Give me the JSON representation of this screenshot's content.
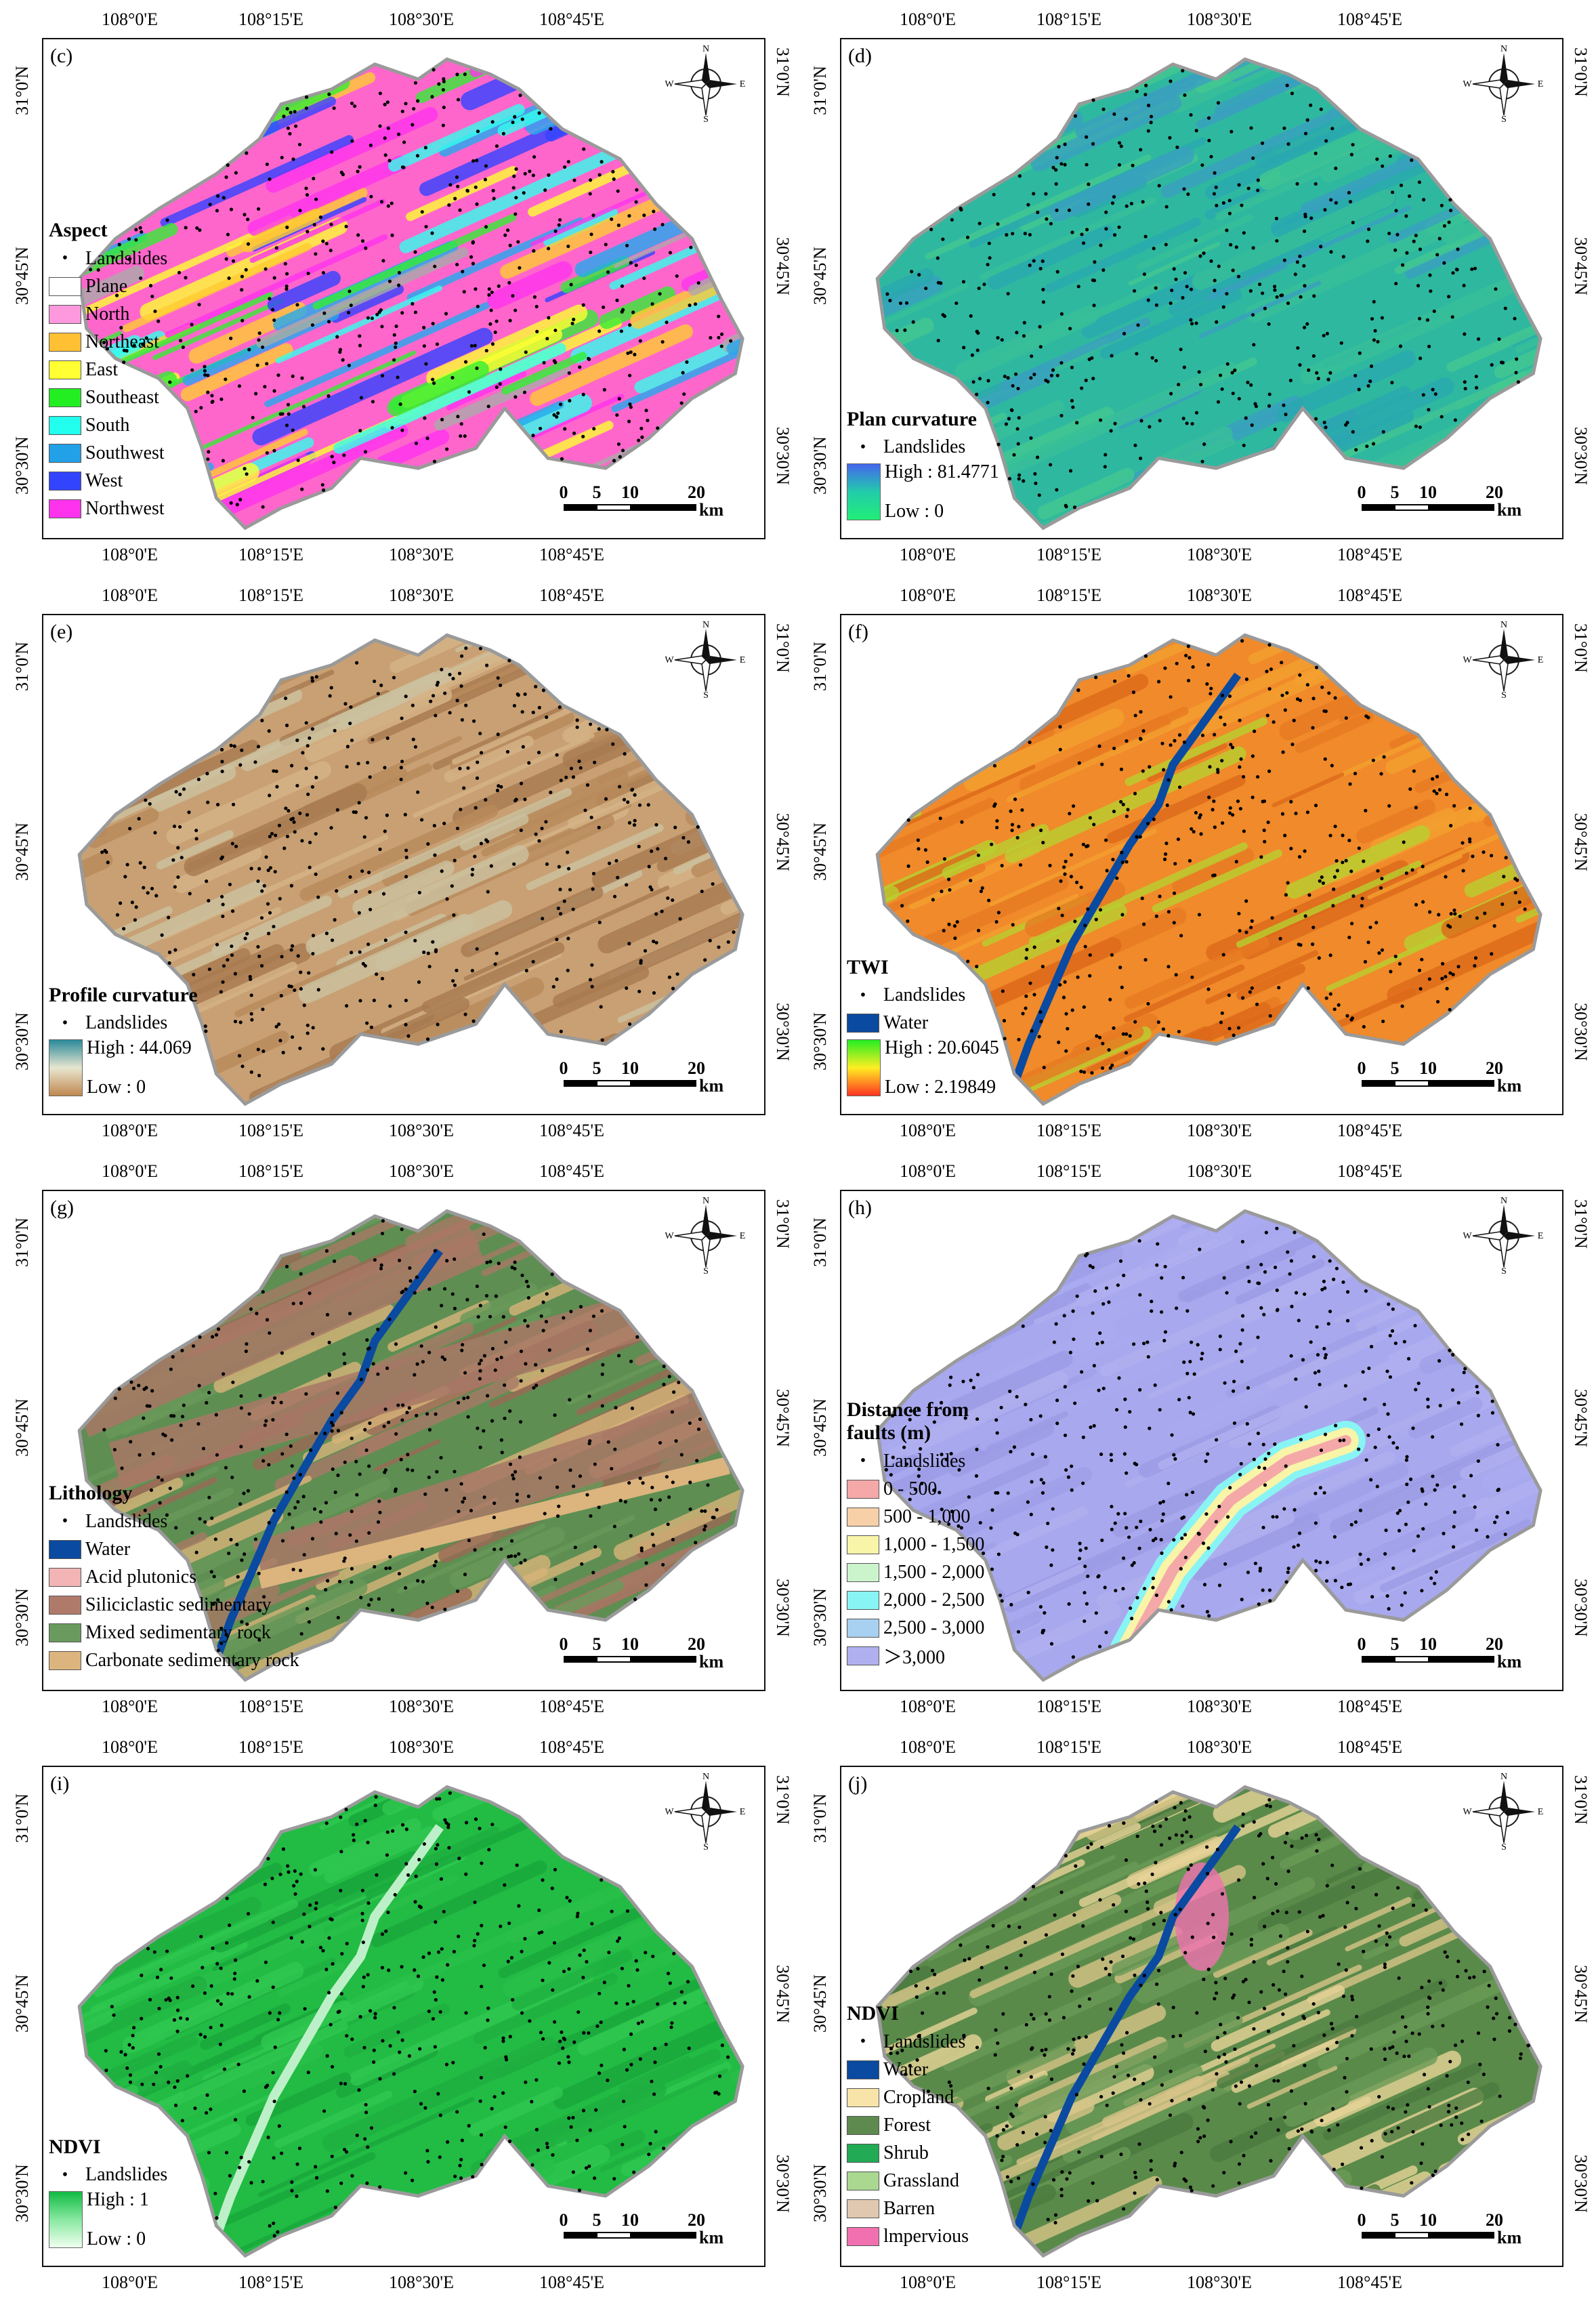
{
  "lon_ticks": [
    "108°0'E",
    "108°15'E",
    "108°30'E",
    "108°45'E"
  ],
  "lat_ticks": [
    "31°0'N",
    "30°45'N",
    "30°30'N"
  ],
  "compass": {
    "n": "N",
    "s": "S",
    "e": "E",
    "w": "W"
  },
  "scale": {
    "ticks": [
      "0",
      "5",
      "10",
      "20"
    ],
    "unit": "km"
  },
  "panels": [
    {
      "id": "c",
      "label": "(c)",
      "legend_title": "Aspect",
      "map_colors": [
        "#ff66cc",
        "#ffcc33",
        "#ffff33",
        "#33ee33",
        "#33ffee",
        "#22aaee",
        "#3344ff",
        "#ff33ee",
        "#aaaaaa"
      ],
      "items": [
        {
          "type": "point",
          "label": "Landslides"
        },
        {
          "type": "box",
          "label": "Plane",
          "color": "#ffffff"
        },
        {
          "type": "box",
          "label": "North",
          "color": "#ff99dd"
        },
        {
          "type": "box",
          "label": "Northeast",
          "color": "#ffc033"
        },
        {
          "type": "box",
          "label": "East",
          "color": "#ffff33"
        },
        {
          "type": "box",
          "label": "Southeast",
          "color": "#22ee22"
        },
        {
          "type": "box",
          "label": "South",
          "color": "#22ffee"
        },
        {
          "type": "box",
          "label": "Southwest",
          "color": "#22a0e8"
        },
        {
          "type": "box",
          "label": "West",
          "color": "#3344ff"
        },
        {
          "type": "box",
          "label": "Northwest",
          "color": "#ff33ee"
        }
      ]
    },
    {
      "id": "d",
      "label": "(d)",
      "legend_title": "Plan curvature",
      "map_colors": [
        "#2fb8a0",
        "#37c098",
        "#2aa8b0",
        "#44c890",
        "#3aa0c0"
      ],
      "items": [
        {
          "type": "point",
          "label": "Landslides"
        },
        {
          "type": "ramp",
          "high": "High : 81.4771",
          "low": "Low : 0",
          "colors": [
            "#4466ee",
            "#22ccaa",
            "#22ee77"
          ]
        }
      ]
    },
    {
      "id": "e",
      "label": "(e)",
      "legend_title": "Profile curvature",
      "map_colors": [
        "#c8a073",
        "#b88a5c",
        "#d6b488",
        "#a87a50",
        "#ccc2a0"
      ],
      "items": [
        {
          "type": "point",
          "label": "Landslides"
        },
        {
          "type": "ramp",
          "high": "High : 44.069",
          "low": "Low : 0",
          "colors": [
            "#2a8a9a",
            "#e8e6d0",
            "#c08850"
          ]
        }
      ]
    },
    {
      "id": "f",
      "label": "(f)",
      "legend_title": "TWI",
      "map_colors": [
        "#f08a2a",
        "#e87a22",
        "#f4a030",
        "#dd6a1a",
        "#b8d030"
      ],
      "items": [
        {
          "type": "point",
          "label": "Landslides"
        },
        {
          "type": "box",
          "label": "Water",
          "color": "#0a4aa0"
        },
        {
          "type": "ramp",
          "high": "High : 20.6045",
          "low": "Low : 2.19849",
          "colors": [
            "#22ee22",
            "#ffee22",
            "#ff3322"
          ]
        }
      ]
    },
    {
      "id": "g",
      "label": "(g)",
      "legend_title": "Lithology",
      "map_colors": [
        "#5e8e52",
        "#a87a66",
        "#6a9a5a",
        "#d8b47a",
        "#9a6a56"
      ],
      "items": [
        {
          "type": "point",
          "label": "Landslides"
        },
        {
          "type": "box",
          "label": "Water",
          "color": "#0a4aa0"
        },
        {
          "type": "box",
          "label": "Acid plutonics",
          "color": "#f2b4b4"
        },
        {
          "type": "box",
          "label": "Siliciclastic sedimentary",
          "color": "#b07a6a"
        },
        {
          "type": "box",
          "label": "Mixed sedimentary rock",
          "color": "#6a9a5e"
        },
        {
          "type": "box",
          "label": "Carbonate sedimentary rock",
          "color": "#dcb47e"
        }
      ]
    },
    {
      "id": "h",
      "label": "(h)",
      "legend_title": "Distance from faults (m)",
      "map_colors": [
        "#a8a8ee",
        "#9c9ce6",
        "#b0b0f0",
        "#a0a0ea",
        "#aaaaf0"
      ],
      "items": [
        {
          "type": "point",
          "label": "Landslides"
        },
        {
          "type": "box",
          "label": "0 - 500",
          "color": "#f4a8a8"
        },
        {
          "type": "box",
          "label": "500 - 1,000",
          "color": "#f8d0a8"
        },
        {
          "type": "box",
          "label": "1,000 - 1,500",
          "color": "#f8f4a8"
        },
        {
          "type": "box",
          "label": "1,500 - 2,000",
          "color": "#ccf4cc"
        },
        {
          "type": "box",
          "label": "2,000 - 2,500",
          "color": "#88f4f4"
        },
        {
          "type": "box",
          "label": "2,500 - 3,000",
          "color": "#a8d0f0"
        },
        {
          "type": "box",
          "label": "＞3,000",
          "color": "#b0b0f0"
        }
      ]
    },
    {
      "id": "i",
      "label": "(i)",
      "legend_title": "NDVI",
      "map_colors": [
        "#22bb44",
        "#2ac04a",
        "#1aa83c",
        "#30c850",
        "#20b040"
      ],
      "items": [
        {
          "type": "point",
          "label": "Landslides"
        },
        {
          "type": "ramp",
          "high": "High : 1",
          "low": "Low : 0",
          "colors": [
            "#11bb44",
            "#88e8a0",
            "#f0fff0"
          ]
        }
      ]
    },
    {
      "id": "j",
      "label": "(j)",
      "legend_title": "NDVI",
      "map_colors": [
        "#5a8a4a",
        "#e8d498",
        "#6a9a56",
        "#d8c488",
        "#4a7a3e"
      ],
      "items": [
        {
          "type": "point",
          "label": "Landslides"
        },
        {
          "type": "box",
          "label": "Water",
          "color": "#0a4aa0"
        },
        {
          "type": "box",
          "label": "Cropland",
          "color": "#f8e4a8"
        },
        {
          "type": "box",
          "label": "Forest",
          "color": "#5e8a50"
        },
        {
          "type": "box",
          "label": "Shrub",
          "color": "#22aa55"
        },
        {
          "type": "box",
          "label": "Grassland",
          "color": "#aad890"
        },
        {
          "type": "box",
          "label": "Barren",
          "color": "#e0c8b0"
        },
        {
          "type": "box",
          "label": "lmpervious",
          "color": "#f070b0"
        }
      ]
    }
  ]
}
